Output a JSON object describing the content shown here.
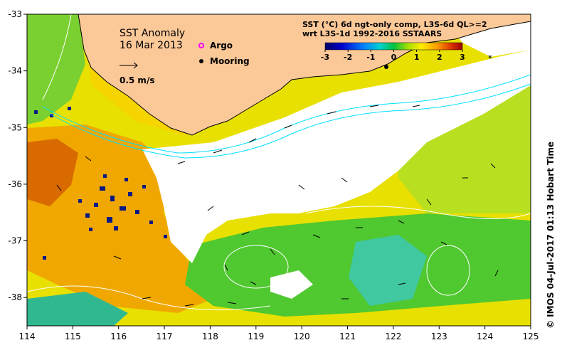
{
  "map": {
    "title": "SST Anomaly",
    "date": "16 Mar 2013",
    "scale_label": "0.5 m/s",
    "legend": [
      {
        "label": "Argo",
        "color": "#ff00ff",
        "symbol": "circle"
      },
      {
        "label": "Mooring",
        "color": "#000000",
        "symbol": "star"
      }
    ],
    "product_line1": "SST (°C) 6d ngt-only comp, L3S-6d QL>=2",
    "product_line2": "wrt L3S-1d 1992-2016 SSTAARS",
    "credit": "© IMOS 04-Jul-2017 01:13 Hobart Time",
    "colors": {
      "land": "#fbc898",
      "missing": "#ffffff",
      "coast": "#000000",
      "contour": "#ffffff",
      "isobath": "#00e0ff"
    }
  },
  "chart_data": {
    "type": "heatmap",
    "x_ticks": [
      "114",
      "115",
      "116",
      "117",
      "118",
      "119",
      "120",
      "121",
      "122",
      "123",
      "124",
      "125"
    ],
    "y_ticks": [
      "-33",
      "-34",
      "-35",
      "-36",
      "-37",
      "-38"
    ],
    "xlim": [
      114,
      125
    ],
    "ylim": [
      -38.5,
      -33
    ],
    "colorbar": {
      "ticks": [
        "-3",
        "-2",
        "-1",
        "0",
        "1",
        "2",
        "3"
      ],
      "range": [
        -3,
        3
      ]
    }
  }
}
